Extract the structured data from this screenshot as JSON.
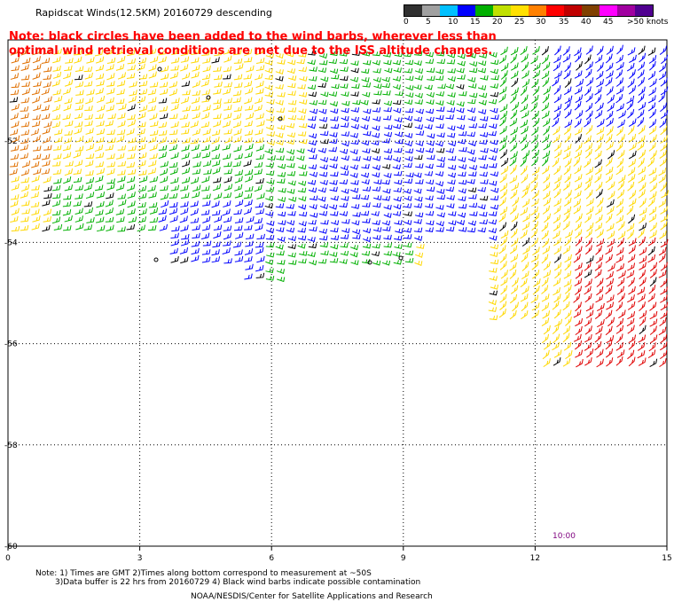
{
  "header": {
    "title": "Rapidscat Winds(12.5KM) 20160729 descending",
    "note_line1": "Note: black circles have been added to the wind barbs, wherever less than",
    "note_line2": "optimal wind retrieval conditions are met due to the ISS altitude changes."
  },
  "colorbar": {
    "labels": [
      "0",
      "5",
      "10",
      "15",
      "20",
      "25",
      "30",
      "35",
      "40",
      "45",
      ">50 knots"
    ],
    "colors": [
      "#303030",
      "#a0a0a0",
      "#00c0ff",
      "#0000ff",
      "#00b000",
      "#c0e000",
      "#ffe000",
      "#ff8000",
      "#ff0000",
      "#c00000",
      "#804000",
      "#ff00ff",
      "#a000a0",
      "#500090"
    ]
  },
  "map": {
    "x_ticks": [
      "0",
      "3",
      "6",
      "9",
      "12",
      "15"
    ],
    "y_ticks": [
      "-52",
      "-54",
      "-56",
      "-58",
      "-60"
    ],
    "x_range": [
      0,
      15
    ],
    "y_range": [
      -60,
      -50
    ],
    "grid": "dotted",
    "time_label": "10:00"
  },
  "footer": {
    "line1": "Note: 1) Times are GMT 2)Times along bottom correspond to measurement at ~50S",
    "line2": "3)Data buffer is 22 hrs from 20160729 4) Black wind barbs indicate possible contamination",
    "line3": "NOAA/NESDIS/Center for Satellite Applications and Research"
  }
}
